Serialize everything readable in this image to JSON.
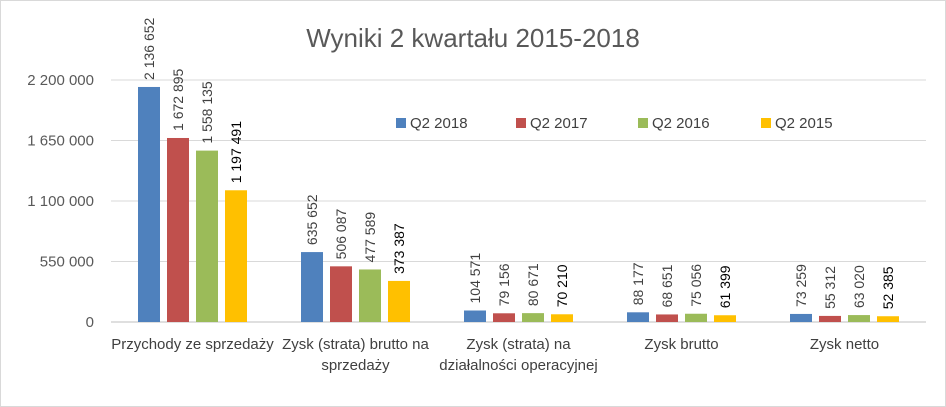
{
  "chart_data": {
    "type": "bar",
    "title": "Wyniki 2 kwartału 2015-2018",
    "xlabel": "",
    "ylabel": "",
    "ylim": [
      0,
      2200000
    ],
    "yticks": [
      0,
      550000,
      1100000,
      1650000,
      2200000
    ],
    "ytick_labels": [
      "0",
      "550 000",
      "1 100 000",
      "1 650 000",
      "2 200 000"
    ],
    "grid": true,
    "legend_position": "top-right",
    "categories": [
      [
        "Przychody ze sprzedaży"
      ],
      [
        "Zysk (strata) brutto na",
        "sprzedaży"
      ],
      [
        "Zysk (strata) na",
        "działalności operacyjnej"
      ],
      [
        "Zysk brutto"
      ],
      [
        "Zysk netto"
      ]
    ],
    "series": [
      {
        "name": "Q2 2018",
        "color": "#4f81bd",
        "values": [
          2136652,
          635652,
          104571,
          88177,
          73259
        ],
        "labels": [
          "2 136 652",
          "635 652",
          "104 571",
          "88 177",
          "73 259"
        ]
      },
      {
        "name": "Q2 2017",
        "color": "#c0504d",
        "values": [
          1672895,
          506087,
          79156,
          68651,
          55312
        ],
        "labels": [
          "1 672 895",
          "506 087",
          "79 156",
          "68 651",
          "55 312"
        ]
      },
      {
        "name": "Q2 2016",
        "color": "#9bbb59",
        "values": [
          1558135,
          477589,
          80671,
          75056,
          63020
        ],
        "labels": [
          "1 558 135",
          "477 589",
          "80 671",
          "75 056",
          "63 020"
        ]
      },
      {
        "name": "Q2 2015",
        "color": "#ffc000",
        "values": [
          1197491,
          373387,
          70210,
          61399,
          52385
        ],
        "labels": [
          "1 197 491",
          "373 387",
          "70 210",
          "61 399",
          "52 385"
        ]
      }
    ]
  }
}
